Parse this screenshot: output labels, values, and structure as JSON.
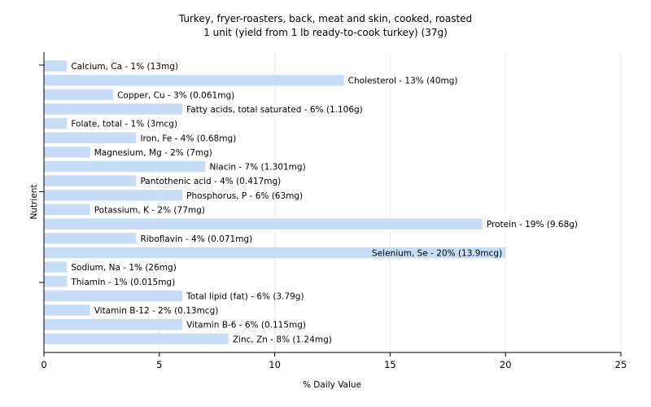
{
  "chart_data": {
    "type": "bar",
    "orientation": "horizontal",
    "title": "Turkey, fryer-roasters, back, meat and skin, cooked, roasted",
    "subtitle": "1 unit (yield from 1 lb ready-to-cook turkey) (37g)",
    "xlabel": "% Daily Value",
    "ylabel": "Nutrient",
    "xlim": [
      0,
      25
    ],
    "xticks": [
      0,
      5,
      10,
      15,
      20,
      25
    ],
    "grid": true,
    "bar_color": "#c6dcf7",
    "categories": [
      "Calcium, Ca",
      "Cholesterol",
      "Copper, Cu",
      "Fatty acids, total saturated",
      "Folate, total",
      "Iron, Fe",
      "Magnesium, Mg",
      "Niacin",
      "Pantothenic acid",
      "Phosphorus, P",
      "Potassium, K",
      "Protein",
      "Riboflavin",
      "Selenium, Se",
      "Sodium, Na",
      "Thiamin",
      "Total lipid (fat)",
      "Vitamin B-12",
      "Vitamin B-6",
      "Zinc, Zn"
    ],
    "values": [
      1,
      13,
      3,
      6,
      1,
      4,
      2,
      7,
      4,
      6,
      2,
      19,
      4,
      20,
      1,
      1,
      6,
      2,
      6,
      8
    ],
    "labels": [
      "Calcium, Ca - 1% (13mg)",
      "Cholesterol - 13% (40mg)",
      "Copper, Cu - 3% (0.061mg)",
      "Fatty acids, total saturated - 6% (1.106g)",
      "Folate, total - 1% (3mcg)",
      "Iron, Fe - 4% (0.68mg)",
      "Magnesium, Mg - 2% (7mg)",
      "Niacin - 7% (1.301mg)",
      "Pantothenic acid - 4% (0.417mg)",
      "Phosphorus, P - 6% (63mg)",
      "Potassium, K - 2% (77mg)",
      "Protein - 19% (9.68g)",
      "Riboflavin - 4% (0.071mg)",
      "Selenium, Se - 20% (13.9mcg)",
      "Sodium, Na - 1% (26mg)",
      "Thiamin - 1% (0.015mg)",
      "Total lipid (fat) - 6% (3.79g)",
      "Vitamin B-12 - 2% (0.13mcg)",
      "Vitamin B-6 - 6% (0.115mg)",
      "Zinc, Zn - 8% (1.24mg)"
    ]
  }
}
